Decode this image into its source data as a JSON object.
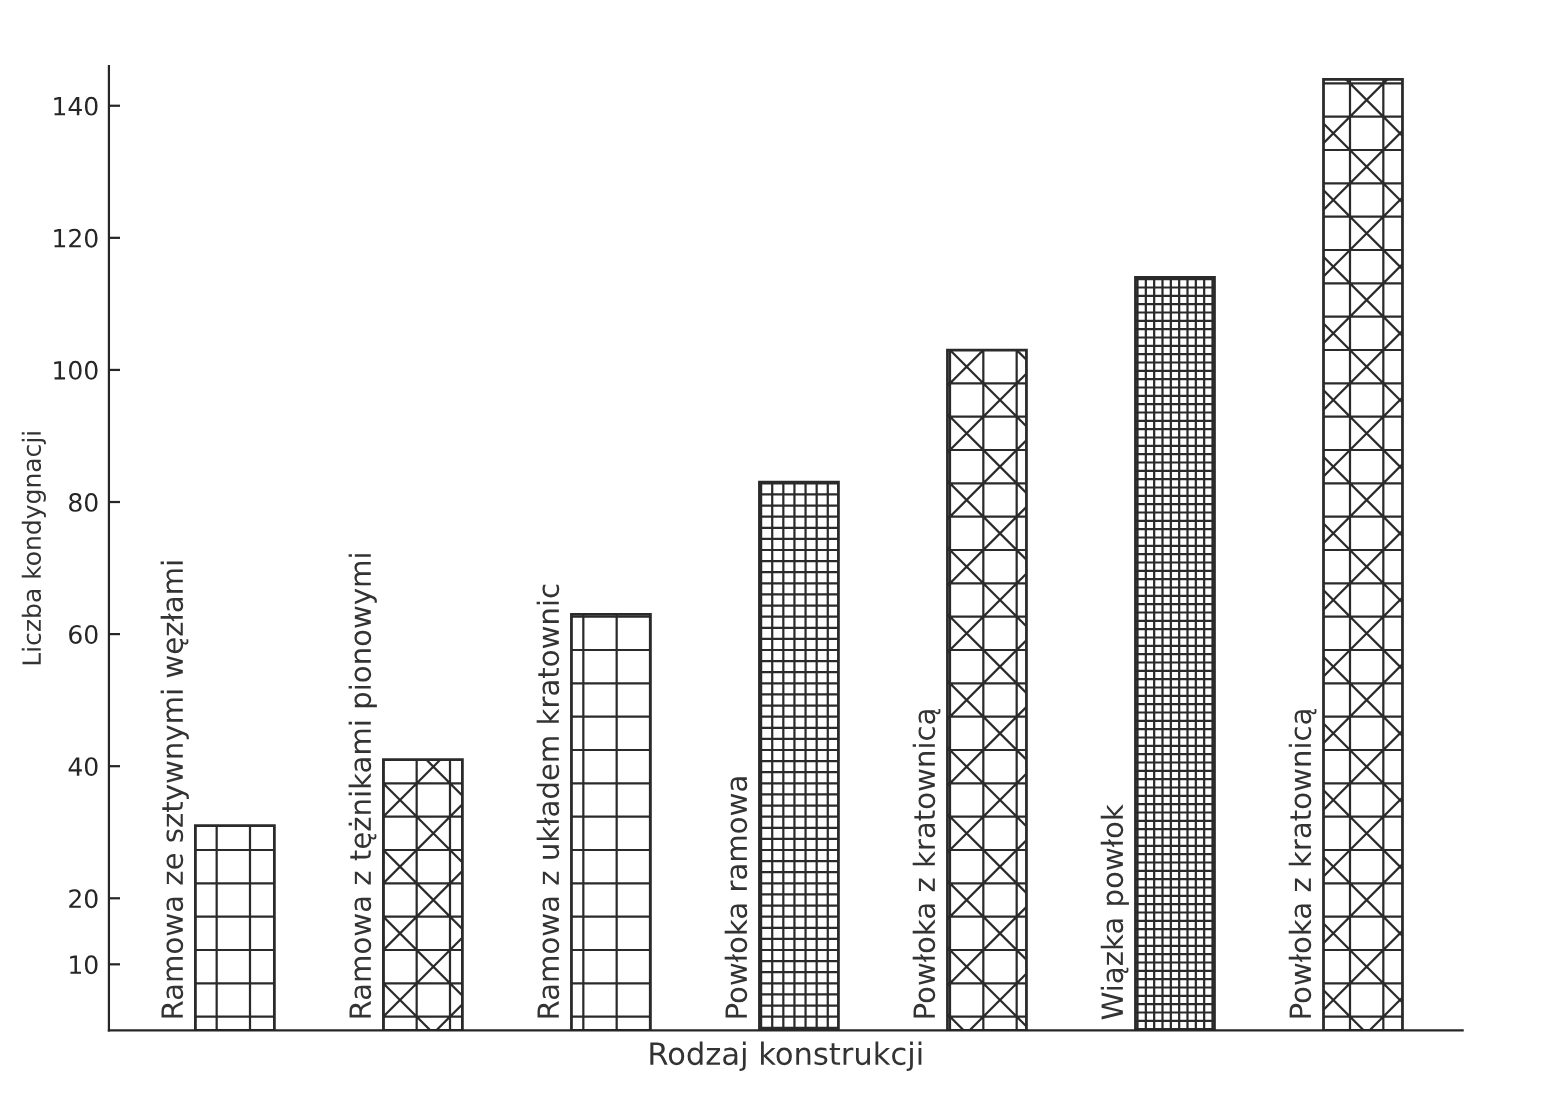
{
  "chart_data": {
    "type": "bar",
    "xlabel": "Rodzaj konstrukcji",
    "ylabel": "Liczba kondygnacji",
    "categories": [
      "Ramowa ze sztywnymi węzłami",
      "Ramowa z tężnikami pionowymi",
      "Ramowa z układem kratownic",
      "Powłoka ramowa",
      "Powłoka z kratownicą",
      "Wiązka powłok",
      "Powłoka z kratownicą"
    ],
    "values": [
      31,
      41,
      63,
      83,
      103,
      114,
      144
    ],
    "ylim": [
      0,
      146
    ],
    "yticks": [
      10,
      20,
      40,
      60,
      80,
      100,
      120,
      140
    ],
    "grid": false,
    "legend": false
  }
}
